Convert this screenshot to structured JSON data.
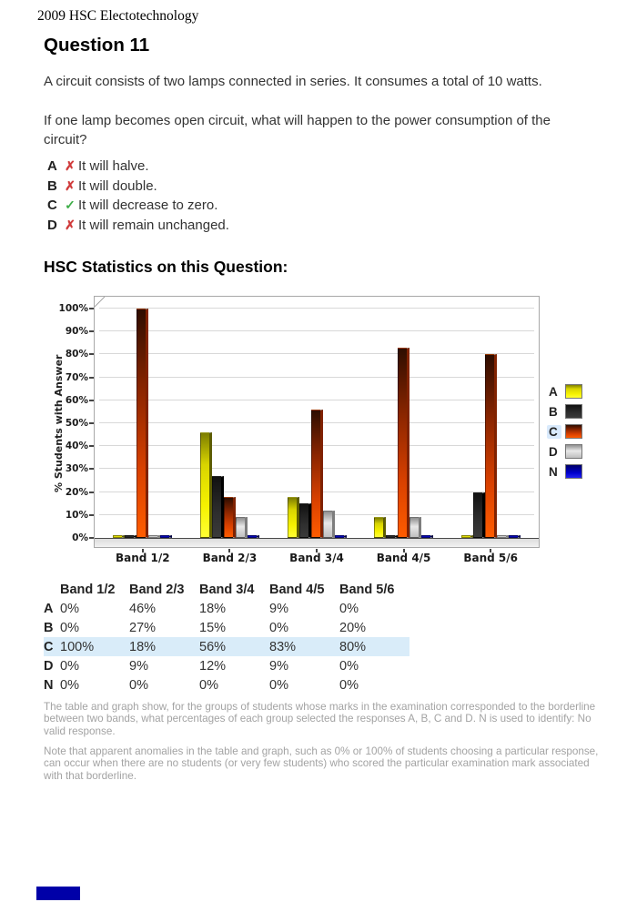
{
  "doc": {
    "header": "2009 HSC Electotechnology",
    "title": "Question 11",
    "stats_heading": "HSC Statistics on this Question:"
  },
  "question": {
    "paragraphs": [
      "A circuit consists of two lamps connected in series. It consumes a total of 10 watts.",
      "If one lamp becomes open circuit, what will happen to the power consumption of the circuit?"
    ],
    "options": [
      {
        "letter": "A",
        "correct": false,
        "text": "It will halve."
      },
      {
        "letter": "B",
        "correct": false,
        "text": "It will double."
      },
      {
        "letter": "C",
        "correct": true,
        "text": "It will decrease to zero."
      },
      {
        "letter": "D",
        "correct": false,
        "text": "It will remain unchanged."
      }
    ]
  },
  "icons": {
    "correct": "✓",
    "incorrect": "✗"
  },
  "colors": {
    "correct": "#3fae49",
    "incorrect": "#d03b3b",
    "row_highlight": "#d9ecf9",
    "series": {
      "A": "#f0ed00",
      "B": "#2b2b2b",
      "C": "#ff5c00",
      "D": "#cccccc",
      "N": "#0000cc"
    }
  },
  "chart_data": {
    "type": "bar",
    "title": "",
    "xlabel": "",
    "ylabel": "% Students with Answer",
    "categories": [
      "Band 1/2",
      "Band 2/3",
      "Band 3/4",
      "Band 4/5",
      "Band 5/6"
    ],
    "series": [
      {
        "name": "A",
        "values": [
          0,
          46,
          18,
          9,
          0
        ]
      },
      {
        "name": "B",
        "values": [
          0,
          27,
          15,
          0,
          20
        ]
      },
      {
        "name": "C",
        "values": [
          100,
          18,
          56,
          83,
          80
        ]
      },
      {
        "name": "D",
        "values": [
          0,
          9,
          12,
          9,
          0
        ]
      },
      {
        "name": "N",
        "values": [
          0,
          0,
          0,
          0,
          0
        ]
      }
    ],
    "ylim": [
      0,
      100
    ],
    "yticks": [
      "0%",
      "10%",
      "20%",
      "30%",
      "40%",
      "50%",
      "60%",
      "70%",
      "80%",
      "90%",
      "100%"
    ],
    "grid": true,
    "legend_position": "right",
    "highlighted_legend_entry": "C"
  },
  "table": {
    "columns": [
      "Band 1/2",
      "Band 2/3",
      "Band 3/4",
      "Band 4/5",
      "Band 5/6"
    ],
    "rows": [
      {
        "label": "A",
        "values": [
          "0%",
          "46%",
          "18%",
          "9%",
          "0%"
        ],
        "highlight": false
      },
      {
        "label": "B",
        "values": [
          "0%",
          "27%",
          "15%",
          "0%",
          "20%"
        ],
        "highlight": false
      },
      {
        "label": "C",
        "values": [
          "100%",
          "18%",
          "56%",
          "83%",
          "80%"
        ],
        "highlight": true
      },
      {
        "label": "D",
        "values": [
          "0%",
          "9%",
          "12%",
          "9%",
          "0%"
        ],
        "highlight": false
      },
      {
        "label": "N",
        "values": [
          "0%",
          "0%",
          "0%",
          "0%",
          "0%"
        ],
        "highlight": false
      }
    ]
  },
  "notes": [
    "The table and graph show, for the groups of students whose marks in the examination corresponded to the borderline between two bands, what percentages of each group selected the responses A, B, C and D. N is used to identify: No valid response.",
    "Note that apparent anomalies in the table and graph, such as 0% or 100% of students choosing a particular response, can occur when there are no students (or very few students) who scored the particular examination mark associated with that borderline."
  ]
}
